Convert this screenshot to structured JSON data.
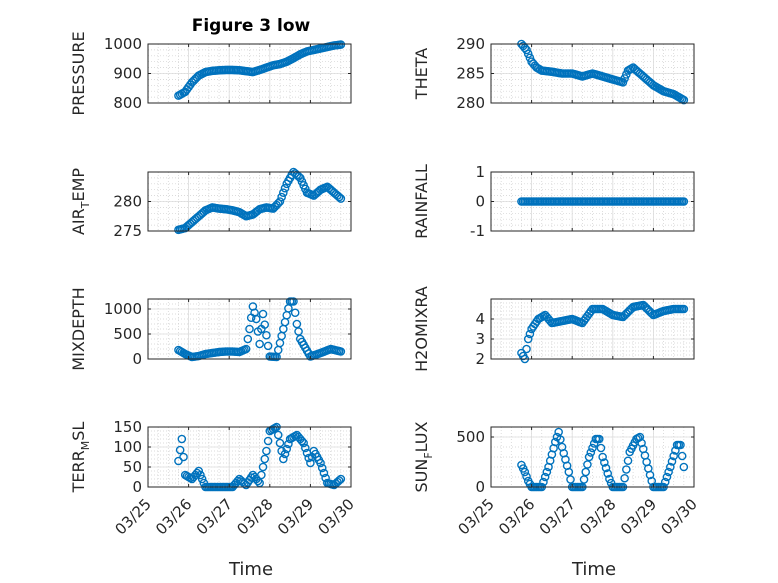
{
  "figure": {
    "title": "Figure 3 low",
    "marker_color": "#0072bd",
    "x_tick_labels": [
      "03/25",
      "03/26",
      "03/27",
      "03/28",
      "03/29",
      "03/30"
    ],
    "xlabel": "Time"
  },
  "chart_data": [
    {
      "type": "scatter",
      "ylabel": "PRESSURE",
      "ylim": [
        800,
        1000
      ],
      "yticks": [
        800,
        900,
        1000
      ],
      "x": [
        "03/25 18:00",
        "03/25 22:00",
        "03/26 02:00",
        "03/26 06:00",
        "03/26 10:00",
        "03/26 14:00",
        "03/26 18:00",
        "03/26 22:00",
        "03/27 02:00",
        "03/27 06:00",
        "03/27 10:00",
        "03/27 14:00",
        "03/27 18:00",
        "03/27 22:00",
        "03/28 02:00",
        "03/28 06:00",
        "03/28 10:00",
        "03/28 14:00",
        "03/28 18:00",
        "03/28 22:00",
        "03/29 02:00",
        "03/29 06:00",
        "03/29 10:00",
        "03/29 14:00",
        "03/29 18:00"
      ],
      "y": [
        825,
        838,
        870,
        893,
        905,
        909,
        911,
        912,
        912,
        911,
        908,
        905,
        912,
        920,
        928,
        932,
        940,
        952,
        965,
        975,
        980,
        985,
        990,
        995,
        998
      ]
    },
    {
      "type": "scatter",
      "ylabel": "THETA",
      "ylim": [
        280,
        290
      ],
      "yticks": [
        280,
        285,
        290
      ],
      "x": [
        "03/25 18:00",
        "03/25 21:00",
        "03/26 00:00",
        "03/26 03:00",
        "03/26 06:00",
        "03/26 12:00",
        "03/26 18:00",
        "03/27 00:00",
        "03/27 06:00",
        "03/27 12:00",
        "03/27 18:00",
        "03/28 00:00",
        "03/28 06:00",
        "03/28 09:00",
        "03/28 12:00",
        "03/28 18:00",
        "03/29 00:00",
        "03/29 06:00",
        "03/29 12:00",
        "03/29 18:00"
      ],
      "y": [
        290,
        289,
        287,
        286,
        285.5,
        285.3,
        285,
        285,
        284.5,
        285,
        284.5,
        284,
        283.5,
        285.5,
        286,
        284.5,
        283,
        282,
        281.5,
        280.5
      ]
    },
    {
      "type": "scatter",
      "ylabel": "AIR_TEMP",
      "ylim": [
        275,
        285
      ],
      "yticks": [
        275,
        280
      ],
      "x": [
        "03/25 18:00",
        "03/25 22:00",
        "03/26 02:00",
        "03/26 06:00",
        "03/26 10:00",
        "03/26 14:00",
        "03/26 18:00",
        "03/26 22:00",
        "03/27 02:00",
        "03/27 06:00",
        "03/27 10:00",
        "03/27 14:00",
        "03/27 18:00",
        "03/27 22:00",
        "03/28 02:00",
        "03/28 06:00",
        "03/28 10:00",
        "03/28 14:00",
        "03/28 18:00",
        "03/28 22:00",
        "03/29 02:00",
        "03/29 06:00",
        "03/29 10:00",
        "03/29 14:00",
        "03/29 18:00"
      ],
      "y": [
        275.2,
        275.5,
        276.5,
        277.5,
        278.5,
        279,
        278.8,
        278.7,
        278.5,
        278.2,
        277.5,
        277.8,
        278.7,
        279,
        278.8,
        280,
        283,
        285,
        284,
        281.5,
        281,
        282,
        282.5,
        281.5,
        280.5
      ]
    },
    {
      "type": "scatter",
      "ylabel": "RAINFALL",
      "ylim": [
        -1,
        1
      ],
      "yticks": [
        -1,
        0,
        1
      ],
      "x": [
        "03/25 18:00",
        "03/26 06:00",
        "03/26 18:00",
        "03/27 06:00",
        "03/27 18:00",
        "03/28 06:00",
        "03/28 18:00",
        "03/29 06:00",
        "03/29 18:00"
      ],
      "y": [
        0,
        0,
        0,
        0,
        0,
        0,
        0,
        0,
        0
      ]
    },
    {
      "type": "scatter",
      "ylabel": "MIXDEPTH",
      "ylim": [
        0,
        1200
      ],
      "yticks": [
        0,
        500,
        1000
      ],
      "x": [
        "03/25 18:00",
        "03/25 22:00",
        "03/26 02:00",
        "03/26 06:00",
        "03/26 10:00",
        "03/26 14:00",
        "03/26 18:00",
        "03/26 22:00",
        "03/27 02:00",
        "03/27 06:00",
        "03/27 10:00",
        "03/27 12:00",
        "03/27 14:00",
        "03/27 16:00",
        "03/27 18:00",
        "03/27 20:00",
        "03/28 00:00",
        "03/28 04:00",
        "03/28 08:00",
        "03/28 12:00",
        "03/28 14:00",
        "03/28 16:00",
        "03/28 18:00",
        "03/29 00:00",
        "03/29 06:00",
        "03/29 12:00",
        "03/29 18:00"
      ],
      "y": [
        180,
        100,
        40,
        60,
        100,
        120,
        140,
        150,
        150,
        140,
        200,
        600,
        1050,
        800,
        300,
        900,
        50,
        40,
        600,
        1150,
        1150,
        700,
        400,
        50,
        120,
        200,
        150
      ]
    },
    {
      "type": "scatter",
      "ylabel": "H2OMIXRA",
      "ylim": [
        2,
        5
      ],
      "yticks": [
        2,
        3,
        4
      ],
      "x": [
        "03/25 18:00",
        "03/25 20:00",
        "03/25 22:00",
        "03/26 00:00",
        "03/26 04:00",
        "03/26 08:00",
        "03/26 12:00",
        "03/26 18:00",
        "03/27 00:00",
        "03/27 06:00",
        "03/27 12:00",
        "03/27 18:00",
        "03/28 00:00",
        "03/28 06:00",
        "03/28 12:00",
        "03/28 18:00",
        "03/29 00:00",
        "03/29 06:00",
        "03/29 12:00",
        "03/29 18:00"
      ],
      "y": [
        2.3,
        2.0,
        3.0,
        3.5,
        4.0,
        4.2,
        3.8,
        3.9,
        4.0,
        3.8,
        4.5,
        4.5,
        4.2,
        4.1,
        4.6,
        4.7,
        4.2,
        4.4,
        4.5,
        4.5
      ]
    },
    {
      "type": "scatter",
      "ylabel": "TERR_MSL",
      "ylim": [
        0,
        150
      ],
      "yticks": [
        0,
        50,
        100,
        150
      ],
      "x": [
        "03/25 18:00",
        "03/25 20:00",
        "03/25 22:00",
        "03/26 02:00",
        "03/26 06:00",
        "03/26 10:00",
        "03/26 18:00",
        "03/27 02:00",
        "03/27 06:00",
        "03/27 10:00",
        "03/27 14:00",
        "03/27 18:00",
        "03/27 22:00",
        "03/28 00:00",
        "03/28 04:00",
        "03/28 08:00",
        "03/28 12:00",
        "03/28 16:00",
        "03/28 20:00",
        "03/29 00:00",
        "03/29 02:00",
        "03/29 06:00",
        "03/29 10:00",
        "03/29 14:00",
        "03/29 18:00"
      ],
      "y": [
        65,
        120,
        30,
        20,
        40,
        0,
        0,
        0,
        20,
        5,
        30,
        10,
        90,
        140,
        150,
        70,
        120,
        130,
        110,
        60,
        90,
        60,
        10,
        5,
        20
      ]
    },
    {
      "type": "scatter",
      "ylabel": "SUN_FLUX",
      "ylim": [
        0,
        600
      ],
      "yticks": [
        0,
        500
      ],
      "x": [
        "03/25 18:00",
        "03/25 20:00",
        "03/25 22:00",
        "03/26 00:00",
        "03/26 06:00",
        "03/26 10:00",
        "03/26 14:00",
        "03/26 16:00",
        "03/26 18:00",
        "03/26 22:00",
        "03/27 00:00",
        "03/27 06:00",
        "03/27 10:00",
        "03/27 14:00",
        "03/27 16:00",
        "03/27 18:00",
        "03/27 22:00",
        "03/28 00:00",
        "03/28 06:00",
        "03/28 10:00",
        "03/28 14:00",
        "03/28 16:00",
        "03/28 18:00",
        "03/28 22:00",
        "03/29 00:00",
        "03/29 06:00",
        "03/29 10:00",
        "03/29 14:00",
        "03/29 16:00",
        "03/29 18:00"
      ],
      "y": [
        220,
        150,
        60,
        0,
        0,
        200,
        450,
        550,
        400,
        150,
        0,
        0,
        300,
        480,
        480,
        300,
        80,
        0,
        0,
        350,
        480,
        500,
        380,
        120,
        0,
        0,
        200,
        420,
        420,
        200
      ]
    }
  ]
}
